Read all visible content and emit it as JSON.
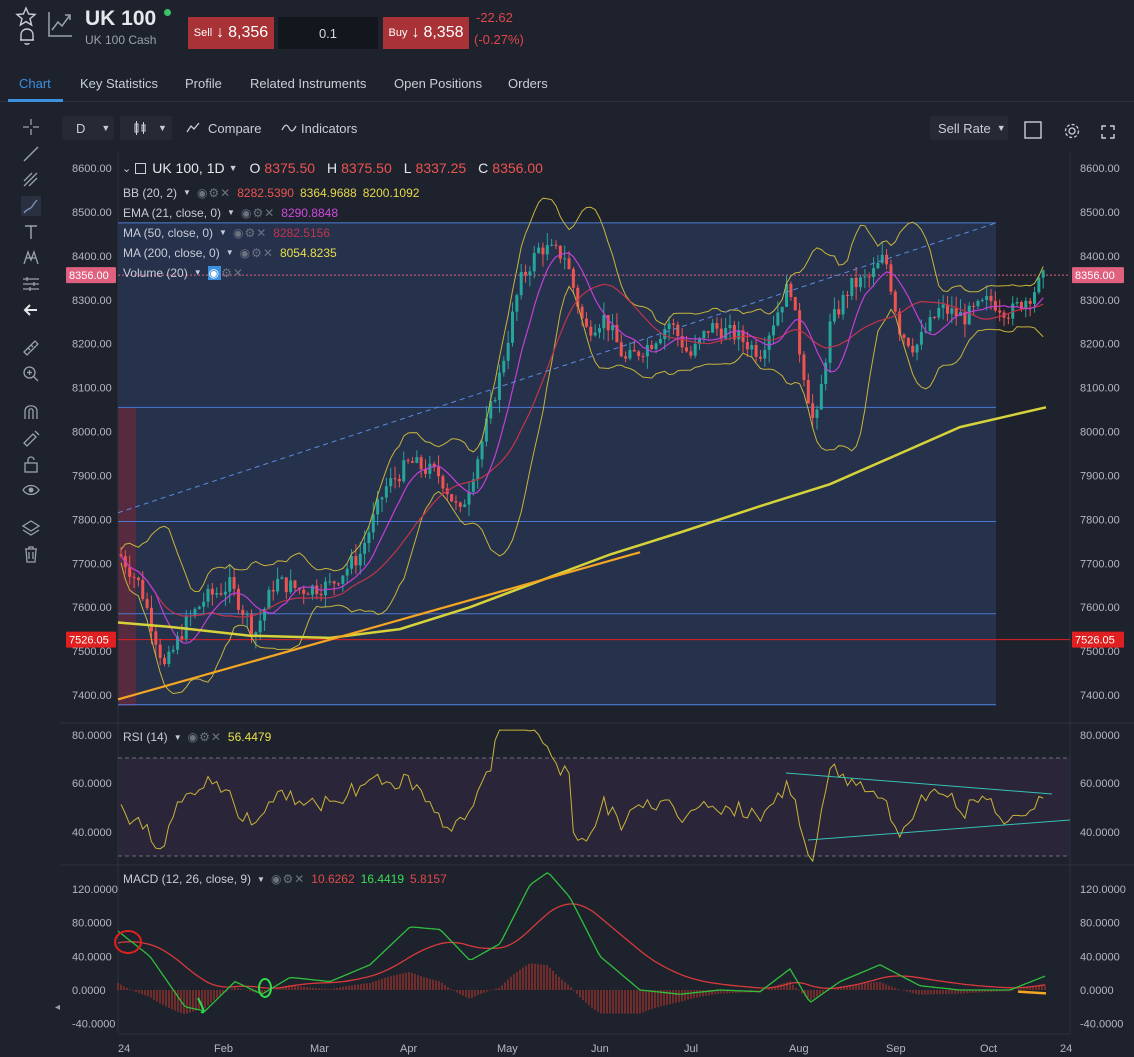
{
  "instrument": {
    "symbol": "UK 100",
    "subtitle": "UK 100 Cash",
    "sell_label": "Sell",
    "sell_price": "8,356",
    "buy_label": "Buy",
    "buy_price": "8,358",
    "arrow": "↓",
    "quantity": "0.1",
    "change_abs": "-22.62",
    "change_pct": "(-0.27%)",
    "status_color": "#3cc26b"
  },
  "tabs": [
    "Chart",
    "Key Statistics",
    "Profile",
    "Related Instruments",
    "Open Positions",
    "Orders"
  ],
  "active_tab": "Chart",
  "toolbar": {
    "interval": "D",
    "compare_label": "Compare",
    "indicators_label": "Indicators",
    "rate_select": "Sell Rate"
  },
  "sidebar_icons": [
    "crosshair-icon",
    "trend-line-icon",
    "fib-icon",
    "brush-icon",
    "text-icon",
    "pattern-icon",
    "measure-icon",
    "back-arrow-icon",
    "ruler-icon",
    "zoom-in-icon",
    "magnet-icon",
    "lock-drawing-icon",
    "lock-icon",
    "eye-icon",
    "layers-icon",
    "trash-icon"
  ],
  "legend": {
    "main_title": "UK 100, 1D",
    "o_label": "O",
    "o_val": "8375.50",
    "h_label": "H",
    "h_val": "8375.50",
    "l_label": "L",
    "l_val": "8337.25",
    "c_label": "C",
    "c_val": "8356.00",
    "bb_label": "BB (20, 2)",
    "bb_v1": "8282.5390",
    "bb_v2": "8364.9688",
    "bb_v3": "8200.1092",
    "ema_label": "EMA (21, close, 0)",
    "ema_val": "8290.8848",
    "ma50_label": "MA (50, close, 0)",
    "ma50_val": "8282.5156",
    "ma200_label": "MA (200, close, 0)",
    "ma200_val": "8054.8235",
    "vol_label": "Volume (20)",
    "rsi_label": "RSI (14)",
    "rsi_val": "56.4479",
    "macd_label": "MACD (12, 26, close, 9)",
    "macd_v1": "10.6262",
    "macd_v2": "16.4419",
    "macd_v3": "5.8157"
  },
  "price_axis": [
    "8600.00",
    "8500.00",
    "8400.00",
    "8300.00",
    "8200.00",
    "8100.00",
    "8000.00",
    "7900.00",
    "7800.00",
    "7700.00",
    "7600.00",
    "7500.00",
    "7400.00"
  ],
  "price_markers": {
    "current": "8356.00",
    "level": "7526.05"
  },
  "rsi_axis": [
    "80.0000",
    "60.0000",
    "40.0000"
  ],
  "macd_axis": [
    "120.0000",
    "80.0000",
    "40.0000",
    "0.0000",
    "-40.0000"
  ],
  "time_axis": [
    "24",
    "Feb",
    "Mar",
    "Apr",
    "May",
    "Jun",
    "Jul",
    "Aug",
    "Sep",
    "Oct",
    "24"
  ],
  "colors": {
    "up": "#26a69a",
    "down": "#ef5350",
    "accent": "#3d8fe0",
    "bb": "#c8b43a",
    "ema": "#c23fd6",
    "ma50": "#c2344a",
    "ma200": "#d6d23a",
    "trend": "#f5a623",
    "rsi": "#c8b43a",
    "macd": "#2fbf3c",
    "signal": "#d63a3a"
  }
}
